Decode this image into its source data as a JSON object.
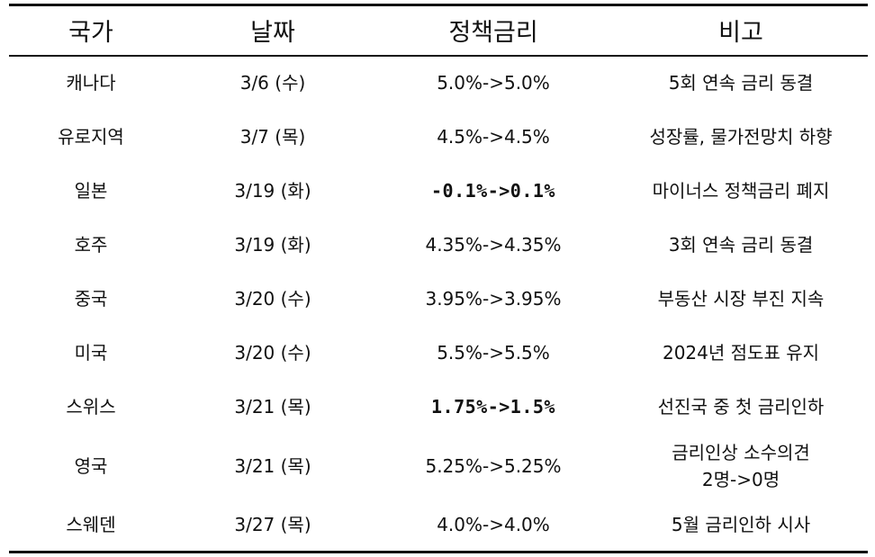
{
  "headers": [
    "국가",
    "날짜",
    "정책금리",
    "비고"
  ],
  "rows": [
    {
      "country": "캐나다",
      "date": "3/6 (수)",
      "rate": "5.0%->5.0%",
      "note": [
        "5회 연속 금리 동결"
      ],
      "bold": false
    },
    {
      "country": "유로지역",
      "date": "3/7 (목)",
      "rate": "4.5%->4.5%",
      "note": [
        "성장률, 물가전망치 하향"
      ],
      "bold": false
    },
    {
      "country": "일본",
      "date": "3/19 (화)",
      "rate": "-0.1%->0.1%",
      "note": [
        "마이너스 정책금리 폐지"
      ],
      "bold": true
    },
    {
      "country": "호주",
      "date": "3/19 (화)",
      "rate": "4.35%->4.35%",
      "note": [
        "3회 연속 금리 동결"
      ],
      "bold": false
    },
    {
      "country": "중국",
      "date": "3/20 (수)",
      "rate": "3.95%->3.95%",
      "note": [
        "부동산 시장 부진 지속"
      ],
      "bold": false
    },
    {
      "country": "미국",
      "date": "3/20 (수)",
      "rate": "5.5%->5.5%",
      "note": [
        "2024년 점도표 유지"
      ],
      "bold": false
    },
    {
      "country": "스위스",
      "date": "3/21 (목)",
      "rate": "1.75%->1.5%",
      "note": [
        "선진국 중 첫 금리인하"
      ],
      "bold": true
    },
    {
      "country": "영국",
      "date": "3/21 (목)",
      "rate": "5.25%->5.25%",
      "note": [
        "금리인상 소수의견",
        "2명->0명"
      ],
      "bold": false
    },
    {
      "country": "스웨덴",
      "date": "3/27 (목)",
      "rate": "4.0%->4.0%",
      "note": [
        "5월 금리인하 시사"
      ],
      "bold": false
    }
  ]
}
